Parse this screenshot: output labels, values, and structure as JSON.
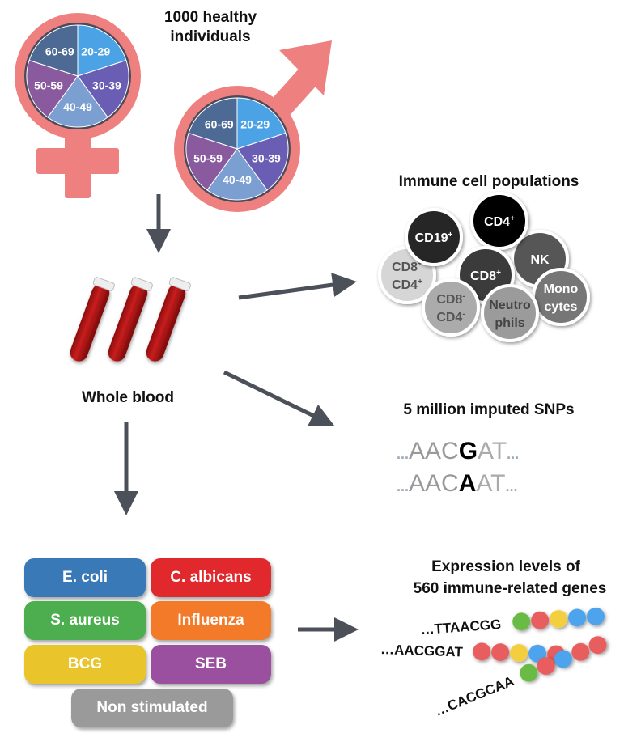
{
  "title": "1000 healthy individuals",
  "title_lines": [
    "1000 healthy",
    "individuals"
  ],
  "age_groups": [
    "20-29",
    "30-39",
    "40-49",
    "50-59",
    "60-69"
  ],
  "age_colors": [
    "#4ba3e6",
    "#6a5db4",
    "#7c9fd2",
    "#8a5a9f",
    "#4d6a94"
  ],
  "symbol_color": "#ef8080",
  "arrow_color": "#4b5059",
  "blood_label": "Whole blood",
  "immune": {
    "title": "Immune cell populations",
    "cells": [
      {
        "label": "CD8+ CD4+",
        "lines": [
          "CD8",
          "CD4"
        ],
        "sup": [
          "+",
          "+"
        ],
        "color": "#d6d6d6",
        "text": "#555555"
      },
      {
        "label": "CD19+",
        "lines": [
          "CD19"
        ],
        "sup": [
          "+"
        ],
        "color": "#262626",
        "text": "#ffffff"
      },
      {
        "label": "NK",
        "lines": [
          "NK"
        ],
        "sup": [
          ""
        ],
        "color": "#575757",
        "text": "#ffffff"
      },
      {
        "label": "CD4+",
        "lines": [
          "CD4"
        ],
        "sup": [
          "+"
        ],
        "color": "#000000",
        "text": "#ffffff"
      },
      {
        "label": "CD8+",
        "lines": [
          "CD8"
        ],
        "sup": [
          "+"
        ],
        "color": "#3b3b3b",
        "text": "#ffffff"
      },
      {
        "label": "CD8- CD4-",
        "lines": [
          "CD8",
          "CD4"
        ],
        "sup": [
          "-",
          "-"
        ],
        "color": "#ababab",
        "text": "#555555"
      },
      {
        "label": "Monocytes",
        "lines": [
          "Mono",
          "cytes"
        ],
        "sup": [
          "",
          ""
        ],
        "color": "#767676",
        "text": "#ffffff"
      },
      {
        "label": "Neutrophils",
        "lines": [
          "Neutro",
          "phils"
        ],
        "sup": [
          "",
          ""
        ],
        "color": "#9b9b9b",
        "text": "#444444"
      }
    ]
  },
  "snps": {
    "title": "5 million imputed SNPs",
    "sequences": [
      {
        "pre": "AAC",
        "variant": "G",
        "post": "AT"
      },
      {
        "pre": "AAC",
        "variant": "A",
        "post": "AT"
      }
    ],
    "ellipsis": "..."
  },
  "stimuli": [
    {
      "label": "E. coli",
      "color": "#3a79b7"
    },
    {
      "label": "C. albicans",
      "color": "#e1282d"
    },
    {
      "label": "S. aureus",
      "color": "#4cae4f"
    },
    {
      "label": "Influenza",
      "color": "#f27a29"
    },
    {
      "label": "BCG",
      "color": "#e9c52b"
    },
    {
      "label": "SEB",
      "color": "#9a4f9f"
    },
    {
      "label": "Non stimulated",
      "color": "#9a9a9a"
    }
  ],
  "expression": {
    "title_lines": [
      "Expression levels of",
      "560 immune-related genes"
    ],
    "strands": [
      {
        "seq": "…TTAACGG",
        "beads": [
          "#6bbb45",
          "#e85d5d",
          "#f3cf3f",
          "#4da3ec",
          "#4da3ec"
        ]
      },
      {
        "seq": "…AACGGAT",
        "beads": [
          "#e85d5d",
          "#e85d5d",
          "#f3cf3f",
          "#4da3ec",
          "#e85d5d"
        ]
      },
      {
        "seq": "…CACGCAA",
        "beads": [
          "#6bbb45",
          "#e85d5d",
          "#4da3ec",
          "#e85d5d",
          "#e85d5d"
        ]
      }
    ]
  }
}
